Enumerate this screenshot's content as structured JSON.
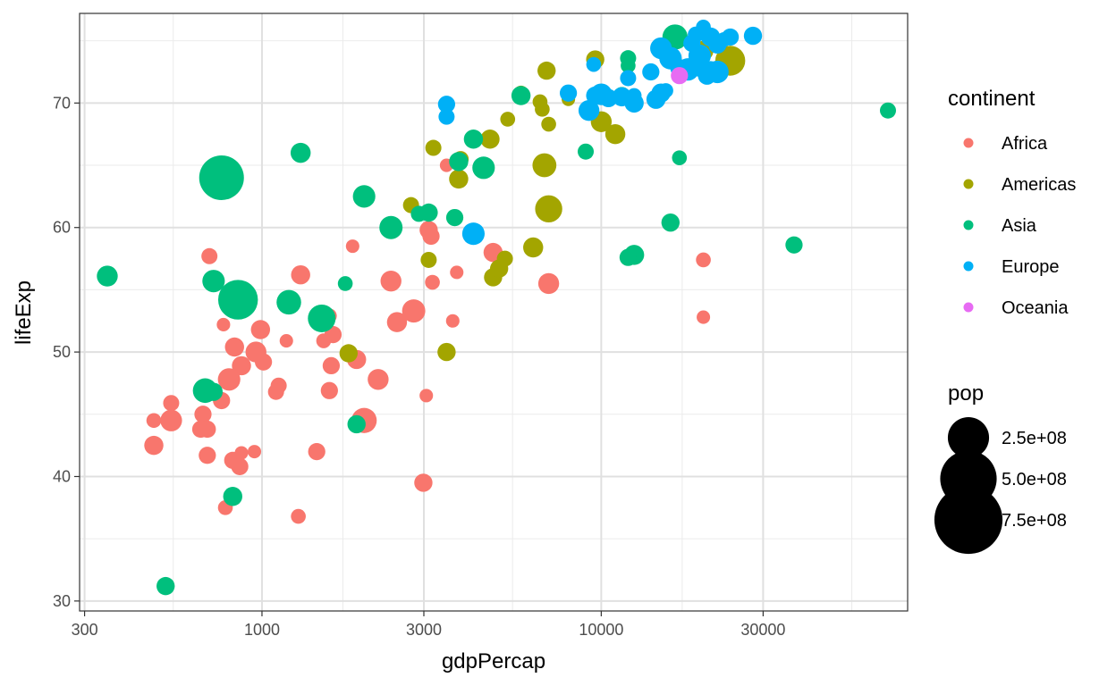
{
  "chart_data": {
    "type": "scatter",
    "title": "",
    "xlabel": "gdpPercap",
    "ylabel": "lifeExp",
    "x_scale": "log10",
    "xlim": [
      290,
      80000
    ],
    "ylim": [
      29.2,
      77.2
    ],
    "x_ticks": [
      300,
      1000,
      3000,
      10000,
      30000
    ],
    "x_tick_labels": [
      "300",
      "1000",
      "3000",
      "10000",
      "30000"
    ],
    "x_minor_ticks": [
      547.72,
      1732.05,
      5477.23,
      17320.51,
      54772.26
    ],
    "y_ticks": [
      30,
      40,
      50,
      60,
      70
    ],
    "y_tick_labels": [
      "30",
      "40",
      "50",
      "60",
      "70"
    ],
    "y_minor_ticks": [
      35,
      45,
      55,
      65,
      75
    ],
    "grid": true,
    "legend_position": "right",
    "color_legend": {
      "title": "continent",
      "items": [
        {
          "name": "Africa",
          "color": "#F8766D"
        },
        {
          "name": "Americas",
          "color": "#A3A500"
        },
        {
          "name": "Asia",
          "color": "#00BF7D"
        },
        {
          "name": "Europe",
          "color": "#00B0F6"
        },
        {
          "name": "Oceania",
          "color": "#E76BF3"
        }
      ]
    },
    "size_legend": {
      "title": "pop",
      "items": [
        {
          "label": "2.5e+08",
          "value": 250000000
        },
        {
          "label": "5.0e+08",
          "value": 500000000
        },
        {
          "label": "7.5e+08",
          "value": 750000000
        }
      ]
    },
    "series": [
      {
        "name": "Africa",
        "color": "#F8766D",
        "points": [
          [
            3100,
            59.8,
            35
          ],
          [
            3150,
            59.3,
            30
          ],
          [
            2800,
            53.3,
            65
          ],
          [
            2500,
            52.4,
            45
          ],
          [
            2400,
            55.7,
            50
          ],
          [
            2200,
            47.8,
            50
          ],
          [
            1900,
            49.4,
            40
          ],
          [
            1850,
            58.5,
            15
          ],
          [
            2000,
            44.5,
            80
          ],
          [
            1580,
            52.9,
            20
          ],
          [
            1620,
            51.4,
            30
          ],
          [
            1520,
            50.9,
            20
          ],
          [
            1600,
            48.9,
            30
          ],
          [
            1580,
            46.9,
            30
          ],
          [
            1450,
            42.0,
            30
          ],
          [
            1300,
            56.2,
            40
          ],
          [
            1180,
            50.9,
            15
          ],
          [
            1120,
            47.3,
            25
          ],
          [
            1100,
            46.8,
            25
          ],
          [
            990,
            51.8,
            40
          ],
          [
            960,
            50.0,
            50
          ],
          [
            1010,
            49.2,
            30
          ],
          [
            950,
            42.0,
            15
          ],
          [
            870,
            48.9,
            40
          ],
          [
            830,
            50.4,
            40
          ],
          [
            800,
            47.8,
            60
          ],
          [
            820,
            41.3,
            30
          ],
          [
            870,
            41.9,
            15
          ],
          [
            860,
            40.8,
            30
          ],
          [
            770,
            52.2,
            15
          ],
          [
            760,
            46.1,
            30
          ],
          [
            780,
            37.5,
            20
          ],
          [
            700,
            57.7,
            25
          ],
          [
            690,
            41.7,
            30
          ],
          [
            670,
            45.0,
            30
          ],
          [
            690,
            43.8,
            30
          ],
          [
            660,
            43.8,
            30
          ],
          [
            540,
            45.9,
            25
          ],
          [
            540,
            44.5,
            55
          ],
          [
            480,
            44.5,
            20
          ],
          [
            480,
            42.5,
            40
          ],
          [
            1280,
            36.8,
            20
          ],
          [
            2990,
            39.5,
            35
          ],
          [
            3050,
            46.5,
            15
          ],
          [
            3650,
            52.5,
            15
          ],
          [
            3750,
            56.4,
            15
          ],
          [
            3180,
            55.6,
            20
          ],
          [
            4800,
            58.0,
            40
          ],
          [
            7000,
            55.5,
            50
          ],
          [
            4200,
            67.1,
            15
          ],
          [
            3500,
            65.0,
            15
          ],
          [
            20000,
            57.4,
            20
          ],
          [
            20000,
            52.8,
            15
          ]
        ]
      },
      {
        "name": "Americas",
        "color": "#A3A500",
        "points": [
          [
            24000,
            73.4,
            120
          ],
          [
            20000,
            74.2,
            45
          ],
          [
            11000,
            67.5,
            45
          ],
          [
            10000,
            68.5,
            50
          ],
          [
            9600,
            73.5,
            35
          ],
          [
            6600,
            70.1,
            20
          ],
          [
            6800,
            65.0,
            70
          ],
          [
            7000,
            61.5,
            95
          ],
          [
            6900,
            72.6,
            35
          ],
          [
            6700,
            69.5,
            20
          ],
          [
            7000,
            68.3,
            20
          ],
          [
            5800,
            70.8,
            20
          ],
          [
            5300,
            68.7,
            20
          ],
          [
            4700,
            67.1,
            40
          ],
          [
            3800,
            63.9,
            40
          ],
          [
            3850,
            65.5,
            25
          ],
          [
            3200,
            66.4,
            25
          ],
          [
            2750,
            61.8,
            25
          ],
          [
            3100,
            57.4,
            25
          ],
          [
            3500,
            50.0,
            35
          ],
          [
            1800,
            49.9,
            35
          ],
          [
            4800,
            56.0,
            35
          ],
          [
            5000,
            56.7,
            35
          ],
          [
            5200,
            57.5,
            25
          ],
          [
            6300,
            58.4,
            45
          ],
          [
            8000,
            70.3,
            15
          ]
        ]
      },
      {
        "name": "Asia",
        "color": "#00BF7D",
        "points": [
          [
            16500,
            75.3,
            80
          ],
          [
            12000,
            73.6,
            25
          ],
          [
            12000,
            73.0,
            20
          ],
          [
            11500,
            70.6,
            30
          ],
          [
            9000,
            66.1,
            25
          ],
          [
            5800,
            70.6,
            40
          ],
          [
            4500,
            64.8,
            60
          ],
          [
            4200,
            67.1,
            40
          ],
          [
            3800,
            65.3,
            40
          ],
          [
            3700,
            60.8,
            30
          ],
          [
            3100,
            61.2,
            35
          ],
          [
            2900,
            61.1,
            25
          ],
          [
            2400,
            60.0,
            65
          ],
          [
            2000,
            62.5,
            60
          ],
          [
            1300,
            66.0,
            45
          ],
          [
            1500,
            52.7,
            100
          ],
          [
            1200,
            54.0,
            75
          ],
          [
            760,
            64.0,
            300
          ],
          [
            850,
            54.2,
            230
          ],
          [
            720,
            55.7,
            60
          ],
          [
            680,
            46.9,
            75
          ],
          [
            720,
            46.8,
            35
          ],
          [
            820,
            38.4,
            40
          ],
          [
            350,
            56.1,
            50
          ],
          [
            520,
            31.2,
            35
          ],
          [
            1900,
            44.2,
            35
          ],
          [
            1760,
            55.5,
            20
          ],
          [
            17000,
            65.6,
            20
          ],
          [
            16000,
            60.4,
            35
          ],
          [
            12500,
            57.8,
            45
          ],
          [
            12000,
            57.6,
            30
          ],
          [
            37000,
            58.6,
            30
          ],
          [
            70000,
            69.4,
            25
          ]
        ]
      },
      {
        "name": "Europe",
        "color": "#00B0F6",
        "points": [
          [
            28000,
            75.4,
            35
          ],
          [
            24000,
            75.3,
            30
          ],
          [
            23000,
            75.1,
            20
          ],
          [
            21000,
            75.3,
            40
          ],
          [
            22000,
            74.7,
            35
          ],
          [
            20000,
            76.1,
            20
          ],
          [
            19000,
            75.5,
            25
          ],
          [
            18500,
            74.8,
            30
          ],
          [
            19500,
            73.8,
            60
          ],
          [
            17000,
            72.8,
            35
          ],
          [
            18000,
            72.7,
            60
          ],
          [
            19500,
            72.8,
            30
          ],
          [
            21000,
            72.6,
            40
          ],
          [
            20500,
            72.2,
            35
          ],
          [
            22000,
            72.5,
            60
          ],
          [
            15000,
            74.4,
            55
          ],
          [
            16000,
            73.6,
            60
          ],
          [
            14000,
            72.5,
            30
          ],
          [
            12000,
            72.0,
            25
          ],
          [
            12500,
            70.6,
            20
          ],
          [
            11500,
            70.5,
            40
          ],
          [
            12500,
            70.0,
            40
          ],
          [
            14500,
            70.3,
            40
          ],
          [
            15000,
            70.8,
            40
          ],
          [
            15500,
            71.0,
            20
          ],
          [
            10000,
            70.7,
            55
          ],
          [
            9600,
            70.6,
            35
          ],
          [
            10500,
            70.4,
            35
          ],
          [
            9200,
            69.4,
            50
          ],
          [
            8000,
            70.8,
            30
          ],
          [
            3500,
            69.9,
            30
          ],
          [
            3500,
            68.9,
            25
          ],
          [
            4200,
            59.5,
            60
          ],
          [
            9500,
            73.1,
            20
          ]
        ]
      },
      {
        "name": "Oceania",
        "color": "#E76BF3",
        "points": [
          [
            17000,
            72.2,
            30
          ]
        ]
      }
    ]
  }
}
